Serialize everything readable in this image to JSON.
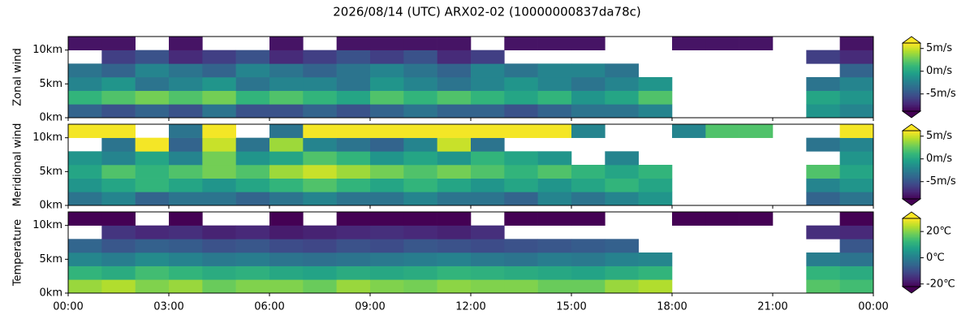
{
  "title": "2026/08/14 (UTC) ARX02-02 (10000000837da78c)",
  "chart_data": [
    {
      "type": "heatmap",
      "ylabel": "Zonal wind",
      "xbins": [
        0,
        1,
        2,
        3,
        4,
        5,
        6,
        7,
        8,
        9,
        10,
        11,
        12,
        13,
        14,
        15,
        16,
        17,
        18,
        19,
        20,
        21,
        22,
        23,
        24
      ],
      "ybins": [
        0,
        2,
        4,
        6,
        8,
        10,
        12
      ],
      "ylim": [
        0,
        12
      ],
      "yticks": [
        {
          "value": 0,
          "label": "0km"
        },
        {
          "value": 5,
          "label": "5km"
        },
        {
          "value": 10,
          "label": "10km"
        }
      ],
      "zlim": [
        -8.8,
        6.2
      ],
      "zticks": [
        {
          "value": -5,
          "label": "-5m/s"
        },
        {
          "value": 0,
          "label": "0m/s"
        },
        {
          "value": 5,
          "label": "5m/s"
        }
      ],
      "z": [
        [
          -4,
          -5,
          -4,
          -5,
          -3,
          -5,
          -5,
          -4,
          -5,
          -4,
          -3,
          -4,
          -4,
          -5,
          -4,
          -3,
          -3,
          -2,
          null,
          null,
          null,
          null,
          -1,
          -2
        ],
        [
          1,
          2,
          3,
          2,
          3,
          1,
          2,
          1,
          0,
          2,
          1,
          2,
          1,
          0,
          1,
          -1,
          0,
          2,
          null,
          null,
          null,
          null,
          0,
          -1
        ],
        [
          -2,
          -1,
          -3,
          -2,
          -1,
          -3,
          -2,
          -2,
          -3,
          -1,
          -2,
          -3,
          -2,
          -1,
          -2,
          -3,
          -2,
          -1,
          null,
          null,
          null,
          null,
          -3,
          -2
        ],
        [
          -3,
          -4,
          -2,
          -3,
          -4,
          -2,
          -3,
          -4,
          -3,
          -2,
          -3,
          -4,
          -2,
          -3,
          -2,
          -2,
          -3,
          null,
          null,
          null,
          null,
          null,
          null,
          -4
        ],
        [
          null,
          -6,
          -5,
          -7,
          -6,
          -5,
          -7,
          -6,
          -5,
          -6,
          -5,
          -7,
          -6,
          null,
          null,
          null,
          null,
          null,
          null,
          null,
          null,
          null,
          -6,
          -7
        ],
        [
          -8,
          -8,
          null,
          -8,
          null,
          null,
          -8,
          null,
          -8,
          -8,
          -8,
          -8,
          null,
          -8,
          -8,
          -8,
          null,
          null,
          -8,
          -8,
          -8,
          null,
          null,
          -8
        ]
      ]
    },
    {
      "type": "heatmap",
      "ylabel": "Meridional wind",
      "xbins": [
        0,
        1,
        2,
        3,
        4,
        5,
        6,
        7,
        8,
        9,
        10,
        11,
        12,
        13,
        14,
        15,
        16,
        17,
        18,
        19,
        20,
        21,
        22,
        23,
        24
      ],
      "ybins": [
        0,
        2,
        4,
        6,
        8,
        10,
        12
      ],
      "ylim": [
        0,
        12
      ],
      "yticks": [
        {
          "value": 0,
          "label": "0km"
        },
        {
          "value": 5,
          "label": "5km"
        },
        {
          "value": 10,
          "label": "10km"
        }
      ],
      "zlim": [
        -8.8,
        6.2
      ],
      "zticks": [
        {
          "value": -5,
          "label": "-5m/s"
        },
        {
          "value": 0,
          "label": "0m/s"
        },
        {
          "value": 5,
          "label": "5m/s"
        }
      ],
      "z": [
        [
          -3,
          -2,
          -4,
          -3,
          -3,
          -4,
          -3,
          -2,
          -3,
          -3,
          -2,
          -3,
          -3,
          -4,
          -2,
          -3,
          -2,
          -1,
          null,
          null,
          null,
          null,
          -4,
          -3
        ],
        [
          -1,
          0,
          1,
          0,
          -1,
          0,
          1,
          2,
          1,
          0,
          1,
          0,
          -1,
          0,
          -1,
          0,
          1,
          0,
          null,
          null,
          null,
          null,
          -2,
          -1
        ],
        [
          0,
          2,
          1,
          2,
          3,
          2,
          4,
          5,
          4,
          3,
          2,
          3,
          2,
          1,
          2,
          1,
          0,
          1,
          null,
          null,
          null,
          null,
          2,
          0
        ],
        [
          -1,
          -2,
          0,
          -2,
          3,
          -1,
          0,
          2,
          1,
          -1,
          0,
          -1,
          1,
          0,
          -1,
          null,
          -2,
          null,
          null,
          null,
          null,
          null,
          null,
          -1
        ],
        [
          null,
          -3,
          6,
          -4,
          5,
          -3,
          4,
          -2,
          -3,
          -4,
          -2,
          5,
          -3,
          null,
          null,
          null,
          null,
          null,
          null,
          null,
          null,
          null,
          -3,
          -2
        ],
        [
          6,
          6,
          null,
          -3,
          6,
          null,
          -3,
          6,
          6,
          6,
          6,
          6,
          6,
          6,
          6,
          -2,
          null,
          null,
          -2,
          2,
          2,
          null,
          null,
          6
        ]
      ]
    },
    {
      "type": "heatmap",
      "ylabel": "Temperature",
      "xbins": [
        0,
        1,
        2,
        3,
        4,
        5,
        6,
        7,
        8,
        9,
        10,
        11,
        12,
        13,
        14,
        15,
        16,
        17,
        18,
        19,
        20,
        21,
        22,
        23,
        24
      ],
      "ybins": [
        0,
        2,
        4,
        6,
        8,
        10,
        12
      ],
      "xlim": [
        0,
        24
      ],
      "xticks": [
        {
          "value": 0,
          "label": "00:00"
        },
        {
          "value": 3,
          "label": "03:00"
        },
        {
          "value": 6,
          "label": "06:00"
        },
        {
          "value": 9,
          "label": "09:00"
        },
        {
          "value": 12,
          "label": "12:00"
        },
        {
          "value": 15,
          "label": "15:00"
        },
        {
          "value": 18,
          "label": "18:00"
        },
        {
          "value": 21,
          "label": "21:00"
        },
        {
          "value": 24,
          "label": "00:00"
        }
      ],
      "ylim": [
        0,
        12
      ],
      "yticks": [
        {
          "value": 0,
          "label": "0km"
        },
        {
          "value": 5,
          "label": "5km"
        },
        {
          "value": 10,
          "label": "10km"
        }
      ],
      "zlim": [
        -22,
        30
      ],
      "zticks": [
        {
          "value": -20,
          "label": "-20℃"
        },
        {
          "value": 0,
          "label": "0℃"
        },
        {
          "value": 20,
          "label": "20℃"
        }
      ],
      "z": [
        [
          22,
          24,
          20,
          22,
          18,
          20,
          20,
          18,
          22,
          20,
          19,
          21,
          20,
          20,
          18,
          18,
          22,
          24,
          null,
          null,
          null,
          null,
          16,
          14
        ],
        [
          12,
          10,
          14,
          12,
          10,
          11,
          9,
          8,
          10,
          9,
          10,
          12,
          11,
          10,
          9,
          8,
          10,
          12,
          null,
          null,
          null,
          null,
          12,
          10
        ],
        [
          2,
          0,
          3,
          1,
          -1,
          0,
          -2,
          -3,
          -2,
          -1,
          0,
          1,
          -1,
          -2,
          0,
          -1,
          1,
          2,
          null,
          null,
          null,
          null,
          0,
          -2
        ],
        [
          -5,
          -8,
          -6,
          -7,
          -9,
          -8,
          -10,
          -11,
          -9,
          -10,
          -8,
          -9,
          -10,
          -9,
          -8,
          -7,
          -6,
          null,
          null,
          null,
          null,
          null,
          null,
          -8
        ],
        [
          null,
          -14,
          -16,
          -15,
          -17,
          -16,
          -18,
          -17,
          -16,
          -15,
          -16,
          -17,
          -15,
          null,
          null,
          null,
          null,
          null,
          null,
          null,
          null,
          null,
          -15,
          -16
        ],
        [
          -22,
          -22,
          null,
          -22,
          null,
          null,
          -22,
          null,
          -22,
          -22,
          -22,
          -22,
          null,
          -22,
          -22,
          -22,
          null,
          null,
          -22,
          -22,
          -22,
          null,
          null,
          -22
        ]
      ]
    }
  ]
}
